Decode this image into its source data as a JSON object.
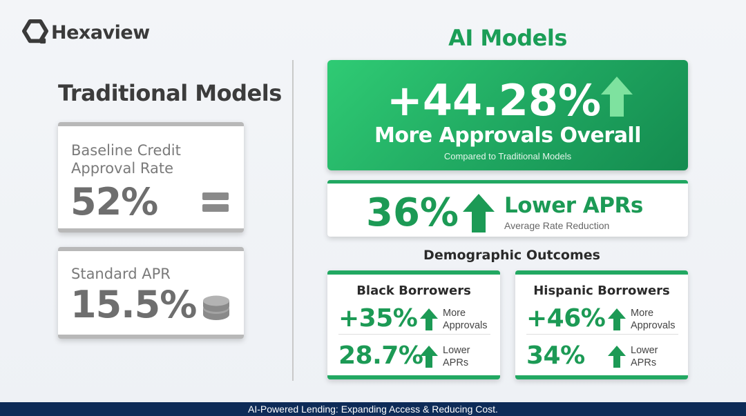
{
  "brand": {
    "logo_icon": "hexagon-logo-icon",
    "name": "Hexaview"
  },
  "traditional": {
    "title": "Traditional Models",
    "card1": {
      "label_line1": "Baseline Credit",
      "label_line2": "Approval Rate",
      "value": "52%",
      "icon": "equals-icon"
    },
    "card2": {
      "label": "Standard APR",
      "value": "15.5%",
      "icon": "coins-icon"
    }
  },
  "ai": {
    "title": "AI Models",
    "hero": {
      "value": "+44.28%",
      "subtitle": "More Approvals Overall",
      "note": "Compared to Traditional Models",
      "icon": "arrow-up-icon"
    },
    "apr": {
      "value": "36%",
      "label": "Lower APRs",
      "note": "Average Rate Reduction",
      "icon": "arrow-up-icon"
    },
    "demographics": {
      "title": "Demographic Outcomes",
      "cards": [
        {
          "name": "Black Borrowers",
          "rows": [
            {
              "value": "+35%",
              "label_line1": "More",
              "label_line2": "Approvals"
            },
            {
              "value": "28.7%",
              "label_line1": "Lower",
              "label_line2": "APRs"
            }
          ]
        },
        {
          "name": "Hispanic Borrowers",
          "rows": [
            {
              "value": "+46%",
              "label_line1": "More",
              "label_line2": "Approvals"
            },
            {
              "value": "34%",
              "label_line1": "Lower",
              "label_line2": "APRs"
            }
          ]
        }
      ]
    }
  },
  "footer": {
    "text": "AI-Powered Lending: Expanding Access & Reducing Cost."
  },
  "colors": {
    "accent_green": "#1c9a55",
    "hero_green_light": "#2fcb74",
    "hero_green_dark": "#148b4f",
    "footer_navy": "#0d2b57",
    "neutral_gray": "#6e6e6e"
  }
}
